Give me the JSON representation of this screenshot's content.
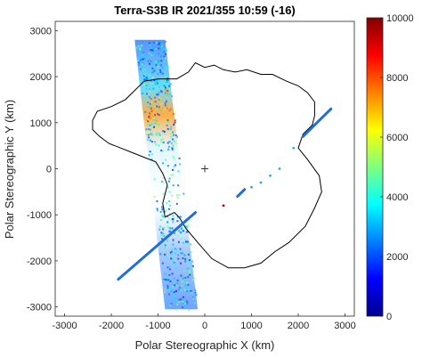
{
  "chart_data": {
    "type": "scatter",
    "title": "Terra-S3B IR 2021/355 10:59 (-16)",
    "xlabel": "Polar Stereographic X (km)",
    "ylabel": "Polar Stereographic Y (km)",
    "xlim": [
      -3200,
      3200
    ],
    "ylim": [
      -3200,
      3200
    ],
    "x_ticks": [
      -3000,
      -2000,
      -1000,
      0,
      1000,
      2000,
      3000
    ],
    "x_tick_labels": [
      "-3000",
      "-2000",
      "-1000",
      "0",
      "1000",
      "2000",
      "3000"
    ],
    "y_ticks": [
      -3000,
      -2000,
      -1000,
      0,
      1000,
      2000,
      3000
    ],
    "y_tick_labels": [
      "-3000",
      "-2000",
      "-1000",
      "0",
      "1000",
      "2000",
      "3000"
    ],
    "grid": false,
    "pole_marker": [
      0,
      0
    ],
    "colorbar": {
      "min": 0,
      "max": 10000,
      "colormap": "jet",
      "ticks": [
        0,
        2000,
        4000,
        6000,
        8000,
        10000
      ],
      "tick_labels": [
        "0",
        "2000",
        "4000",
        "6000",
        "8000",
        "10000"
      ]
    },
    "swath_corners": [
      [
        -1500,
        2800
      ],
      [
        -850,
        2800
      ],
      [
        -150,
        -3050
      ],
      [
        -850,
        -3050
      ]
    ],
    "calipso_segments": [
      {
        "from": [
          -1850,
          -2400
        ],
        "to": [
          -200,
          -950
        ]
      },
      {
        "from": [
          2100,
          700
        ],
        "to": [
          2700,
          1300
        ]
      },
      {
        "from": [
          700,
          -600
        ],
        "to": [
          850,
          -450
        ]
      }
    ],
    "calipso_points": [
      [
        400,
        -800
      ],
      [
        1000,
        -400
      ],
      [
        1200,
        -300
      ],
      [
        1400,
        -150
      ],
      [
        1600,
        0
      ],
      [
        1900,
        450
      ]
    ],
    "coastline": [
      [
        -2400,
        1050
      ],
      [
        -2300,
        1250
      ],
      [
        -2000,
        1350
      ],
      [
        -1700,
        1500
      ],
      [
        -1500,
        1700
      ],
      [
        -1300,
        1900
      ],
      [
        -1000,
        1950
      ],
      [
        -600,
        1950
      ],
      [
        -350,
        2100
      ],
      [
        -200,
        2300
      ],
      [
        0,
        2200
      ],
      [
        200,
        2250
      ],
      [
        400,
        2150
      ],
      [
        650,
        2100
      ],
      [
        900,
        2150
      ],
      [
        1200,
        2050
      ],
      [
        1450,
        2050
      ],
      [
        1750,
        1900
      ],
      [
        2000,
        1800
      ],
      [
        2200,
        1650
      ],
      [
        2350,
        1450
      ],
      [
        2350,
        1150
      ],
      [
        2300,
        950
      ],
      [
        2100,
        750
      ],
      [
        2000,
        450
      ],
      [
        2200,
        200
      ],
      [
        2450,
        -150
      ],
      [
        2500,
        -500
      ],
      [
        2350,
        -850
      ],
      [
        2150,
        -1250
      ],
      [
        1800,
        -1600
      ],
      [
        1500,
        -1800
      ],
      [
        1200,
        -2050
      ],
      [
        850,
        -2150
      ],
      [
        500,
        -2150
      ],
      [
        150,
        -1950
      ],
      [
        -150,
        -1600
      ],
      [
        -400,
        -1300
      ],
      [
        -550,
        -1050
      ],
      [
        -650,
        -950
      ],
      [
        -850,
        -1050
      ],
      [
        -900,
        -750
      ],
      [
        -800,
        -350
      ],
      [
        -900,
        -100
      ],
      [
        -1050,
        150
      ],
      [
        -1300,
        250
      ],
      [
        -1550,
        350
      ],
      [
        -1800,
        450
      ],
      [
        -2050,
        550
      ],
      [
        -2250,
        700
      ],
      [
        -2400,
        850
      ]
    ]
  }
}
